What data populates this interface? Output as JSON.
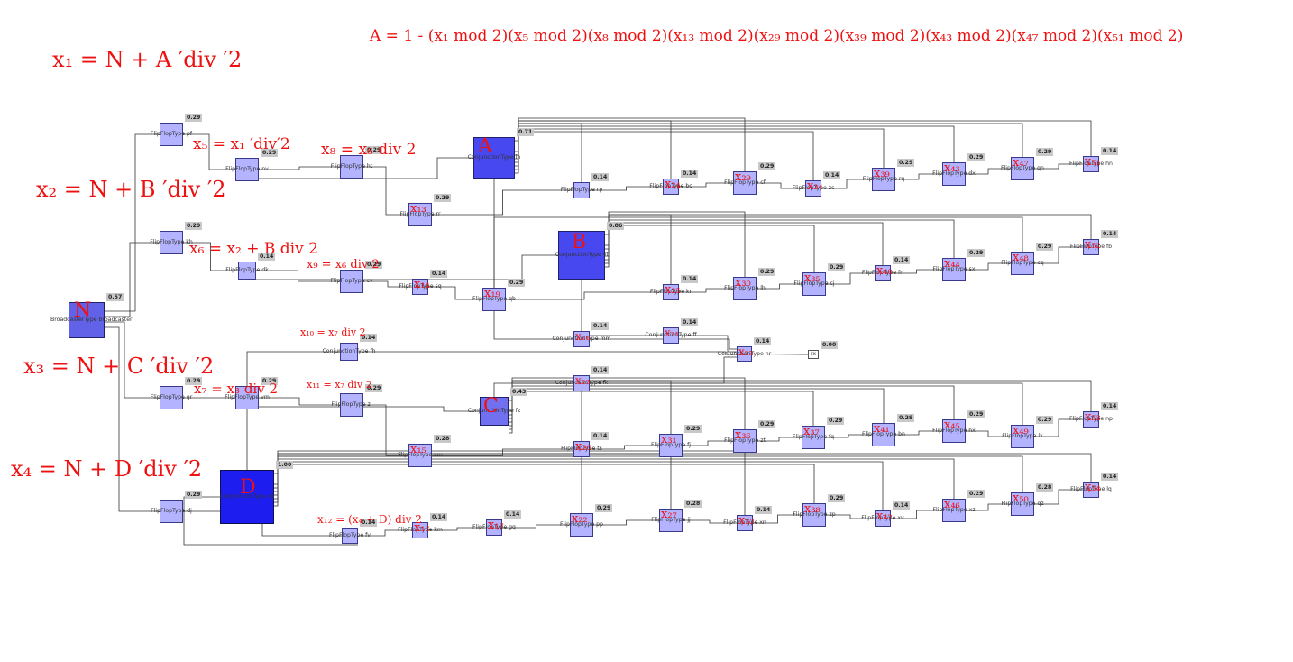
{
  "annotations": {
    "formula_A": "A = 1 - (x₁ mod 2)(x₅ mod 2)(x₈ mod 2)(x₁₃ mod 2)(x₂₉ mod 2)(x₃₉ mod 2)(x₄₃ mod 2)(x₄₇ mod 2)(x₅₁ mod 2)",
    "x1": "x₁ = N + A ′div ′2",
    "x2": "x₂ = N + B ′div ′2",
    "x3": "x₃ = N + C ′div ′2",
    "x4": "x₄ = N + D ′div ′2",
    "x5": "x₅ = x₁ ′div′2",
    "x8": "x₈ = x₆ div 2",
    "x6": "x₆ = x₂ + B div 2",
    "x9": "x₉ = x₆ div 2",
    "x10": "x₁₀ = x₇ div 2",
    "x7": "x₇ = x₃ div 2",
    "x11": "x₁₁ = x₇ div 2",
    "x12": "x₁₂ = (x₄ + D) div 2",
    "A": "A",
    "B": "B",
    "C": "C",
    "D": "D",
    "N": "N"
  },
  "broadcaster": {
    "label": "BroadcasterType broadcaster",
    "value": "0.57"
  },
  "output": {
    "label": "rx",
    "value": "0.00"
  },
  "nr": {
    "label": "ConjunctionType nr",
    "value": "0.14"
  },
  "conjunctions": {
    "A": {
      "label": "ConjunctionType lh",
      "value": "0.71"
    },
    "B": {
      "label": "ConjunctionType vl",
      "value": "0.86"
    },
    "C": {
      "label": "ConjunctionType fz",
      "value": "0.43"
    },
    "D": {
      "label": "ConjunctionType vq",
      "value": "1.00"
    },
    "mm": {
      "label": "ConjunctionType mm",
      "value": "0.14"
    },
    "ff": {
      "label": "ConjunctionType ff",
      "value": "0.14"
    },
    "fh": {
      "label": "ConjunctionType fh",
      "value": "0.14"
    },
    "fk": {
      "label": "ConjunctionType fk",
      "value": "0.14"
    }
  },
  "row_A": [
    {
      "label": "FlipFlopType pf",
      "value": "0.29",
      "hw": ""
    },
    {
      "label": "FlipFlopType nv",
      "value": "0.29",
      "hw": ""
    },
    {
      "label": "FlipFlopType ht",
      "value": "0.29",
      "hw": ""
    },
    {
      "label": "FlipFlopType rr",
      "value": "0.29",
      "hw": "x₁₃"
    },
    {
      "label": "FlipFlopType rp",
      "value": "0.14",
      "hw": ""
    },
    {
      "label": "FlipFlopType bc",
      "value": "0.14",
      "hw": "x₂₄"
    },
    {
      "label": "FlipFlopType cf",
      "value": "0.29",
      "hw": "x₂₉"
    },
    {
      "label": "FlipFlopType zc",
      "value": "0.14",
      "hw": "x₃₄"
    },
    {
      "label": "FlipFlopType rq",
      "value": "0.29",
      "hw": "x₃₉"
    },
    {
      "label": "FlipFlopType dx",
      "value": "0.29",
      "hw": "x₄₃"
    },
    {
      "label": "FlipFlopType qn",
      "value": "0.29",
      "hw": "x₄₇"
    },
    {
      "label": "FlipFlopType hn",
      "value": "0.14",
      "hw": "x₅₁"
    }
  ],
  "row_B": [
    {
      "label": "FlipFlopType kh",
      "value": "0.29",
      "hw": ""
    },
    {
      "label": "FlipFlopType dk",
      "value": "0.14",
      "hw": ""
    },
    {
      "label": "FlipFlopType cv",
      "value": "0.29",
      "hw": ""
    },
    {
      "label": "FlipFlopType sq",
      "value": "0.14",
      "hw": "x₁₄"
    },
    {
      "label": "FlipFlopType qb",
      "value": "0.29",
      "hw": "x₁₉"
    },
    {
      "label": "FlipFlopType kr",
      "value": "0.14",
      "hw": "x₂₅"
    },
    {
      "label": "FlipFlopType lh",
      "value": "0.29",
      "hw": "x₃₀"
    },
    {
      "label": "FlipFlopType cj",
      "value": "0.29",
      "hw": "x₃₅"
    },
    {
      "label": "FlipFlopType fn",
      "value": "0.14",
      "hw": "x₄₀"
    },
    {
      "label": "FlipFlopType sx",
      "value": "0.29",
      "hw": "x₄₄"
    },
    {
      "label": "FlipFlopType cq",
      "value": "0.29",
      "hw": "x₄₈"
    },
    {
      "label": "FlipFlopType fb",
      "value": "0.14",
      "hw": "x₅₂"
    }
  ],
  "row_C": [
    {
      "label": "FlipFlopType gr",
      "value": "0.29",
      "hw": ""
    },
    {
      "label": "FlipFlopType vm",
      "value": "0.29",
      "hw": ""
    },
    {
      "label": "FlipFlopType zl",
      "value": "0.29",
      "hw": ""
    },
    {
      "label": "FlipFlopType cm",
      "value": "0.28",
      "hw": "x₁₅"
    },
    {
      "label": "FlipFlopType ts",
      "value": "0.14",
      "hw": "x₂₆"
    },
    {
      "label": "FlipFlopType fj",
      "value": "0.29",
      "hw": "x₃₁"
    },
    {
      "label": "FlipFlopType zt",
      "value": "0.29",
      "hw": "x₃₆"
    },
    {
      "label": "FlipFlopType fq",
      "value": "0.29",
      "hw": "x₃₇"
    },
    {
      "label": "FlipFlopType bn",
      "value": "0.29",
      "hw": "x₄₁"
    },
    {
      "label": "FlipFlopType hx",
      "value": "0.29",
      "hw": "x₄₅"
    },
    {
      "label": "FlipFlopType lx",
      "value": "0.29",
      "hw": "x₄₉"
    },
    {
      "label": "FlipFlopType np",
      "value": "0.14",
      "hw": "x₅₃"
    }
  ],
  "row_D": [
    {
      "label": "FlipFlopType dj",
      "value": "0.29",
      "hw": ""
    },
    {
      "label": "FlipFlopType fv",
      "value": "0.14",
      "hw": ""
    },
    {
      "label": "FlipFlopType km",
      "value": "0.14",
      "hw": "x₁₆"
    },
    {
      "label": "FlipFlopType gq",
      "value": "0.14",
      "hw": "x₁₇"
    },
    {
      "label": "FlipFlopType pp",
      "value": "0.29",
      "hw": "x₂₂"
    },
    {
      "label": "FlipFlopType jj",
      "value": "0.28",
      "hw": "x₂₇"
    },
    {
      "label": "FlipFlopType xn",
      "value": "0.14",
      "hw": "x₃₂"
    },
    {
      "label": "FlipFlopType zp",
      "value": "0.29",
      "hw": "x₃₈"
    },
    {
      "label": "FlipFlopType xv",
      "value": "0.14",
      "hw": "x₄₂"
    },
    {
      "label": "FlipFlopType xz",
      "value": "0.29",
      "hw": "x₄₆"
    },
    {
      "label": "FlipFlopType qz",
      "value": "0.28",
      "hw": "x₅₀"
    },
    {
      "label": "FlipFlopType lq",
      "value": "0.14",
      "hw": "x₅₄"
    }
  ],
  "conj_hw": {
    "mm": "x₂₀",
    "ff": "x₂₁",
    "fh": "",
    "fk": "x₂₃",
    "nr": "x₃₃"
  }
}
